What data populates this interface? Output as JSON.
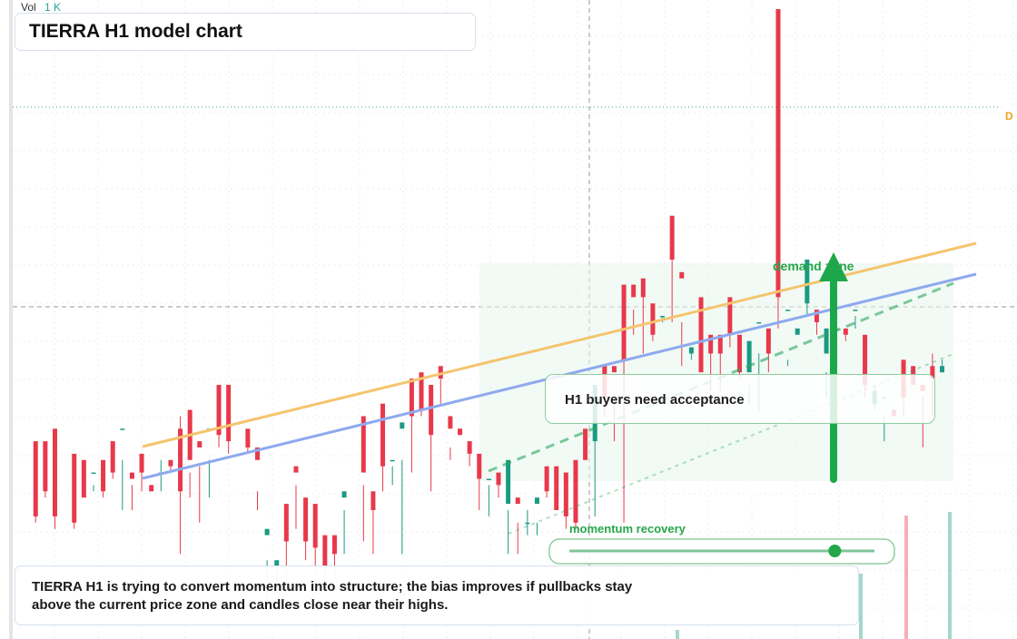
{
  "header": {
    "vol_label": "Vol",
    "vol_value": "1 K",
    "title": "TIERRA H1 model chart"
  },
  "annotations": {
    "zone_label": "demand zone",
    "callout_text": "H1 buyers need acceptance",
    "momentum_label": "momentum recovery",
    "momentum_level": 0.87,
    "right_marker": "D"
  },
  "note": {
    "line1": "TIERRA H1 is trying to convert momentum into structure; the bias improves if pullbacks stay",
    "line2": "above the current price zone and candles close near their highs."
  },
  "colors": {
    "up": "#1a9a82",
    "down": "#e8384b",
    "resistance": "#f5c46e",
    "support": "#8eaaee",
    "accent_green": "#26a64a",
    "vol_value": "#26a69a",
    "marker_orange": "#f0a020"
  },
  "chart_data": {
    "type": "candlestick",
    "y_range": [
      0,
      100
    ],
    "x_range": [
      0,
      100
    ],
    "candles": [
      [
        2,
        30,
        31,
        19,
        18
      ],
      [
        3,
        30,
        31,
        23,
        22
      ],
      [
        4,
        29,
        33,
        19,
        17
      ],
      [
        6,
        19,
        29,
        18,
        17
      ],
      [
        7,
        22,
        28,
        22,
        22
      ],
      [
        8,
        24,
        26,
        26,
        23
      ],
      [
        9,
        26,
        28,
        23,
        22
      ],
      [
        10,
        30,
        31,
        26,
        25
      ],
      [
        11,
        28,
        33,
        33,
        20
      ],
      [
        12,
        24,
        26,
        25,
        20
      ],
      [
        13,
        28,
        29,
        26,
        23
      ],
      [
        14,
        24,
        24,
        23,
        23
      ],
      [
        15,
        28,
        26,
        26,
        23
      ],
      [
        16,
        27,
        28,
        27,
        26
      ],
      [
        17,
        35,
        33,
        23,
        13
      ],
      [
        18,
        26,
        36,
        28,
        22
      ],
      [
        19,
        27,
        31,
        30,
        18
      ],
      [
        20,
        28,
        33,
        33,
        22
      ],
      [
        21,
        39,
        40,
        32,
        30
      ],
      [
        22,
        37,
        40,
        31,
        29
      ],
      [
        24,
        31,
        33,
        30,
        29
      ],
      [
        25,
        23,
        30,
        28,
        20
      ],
      [
        26,
        12,
        16,
        17,
        4
      ],
      [
        27,
        11,
        11,
        12,
        8
      ],
      [
        28,
        19,
        21,
        15,
        8
      ],
      [
        29,
        24,
        27,
        26,
        17
      ],
      [
        30,
        16,
        22,
        15,
        12
      ],
      [
        31,
        15,
        21,
        14,
        10
      ],
      [
        32,
        12,
        16,
        11,
        8
      ],
      [
        33,
        15,
        16,
        13,
        9
      ],
      [
        34,
        20,
        22,
        23,
        13
      ],
      [
        36,
        24,
        35,
        26,
        15
      ],
      [
        37,
        23,
        23,
        20,
        13
      ],
      [
        38,
        30,
        37,
        27,
        23
      ],
      [
        39,
        27,
        28,
        28,
        24
      ],
      [
        40,
        28,
        33,
        34,
        13
      ],
      [
        41,
        35,
        41,
        35,
        26
      ],
      [
        42,
        40,
        42,
        36,
        35
      ],
      [
        43,
        37,
        40,
        32,
        23
      ],
      [
        44,
        41,
        43,
        41,
        37
      ],
      [
        45,
        30,
        35,
        33,
        28
      ],
      [
        46,
        33,
        33,
        32,
        32
      ],
      [
        47,
        29,
        31,
        29,
        27
      ],
      [
        48,
        28,
        29,
        25,
        20
      ],
      [
        49,
        24,
        25,
        25,
        19
      ],
      [
        50,
        24,
        26,
        24,
        22
      ],
      [
        51,
        20,
        21,
        28,
        13
      ],
      [
        52,
        18,
        22,
        21,
        13
      ],
      [
        53,
        20,
        18,
        18,
        16
      ],
      [
        54,
        18,
        21,
        22,
        16
      ],
      [
        55,
        24,
        27,
        23,
        22
      ],
      [
        56,
        26,
        27,
        20,
        20
      ],
      [
        57,
        25,
        26,
        19,
        17
      ],
      [
        58,
        26,
        28,
        18,
        17
      ],
      [
        59,
        28,
        33,
        28,
        28
      ],
      [
        60,
        31,
        31,
        40,
        19
      ],
      [
        61,
        37,
        43,
        38,
        35
      ],
      [
        62,
        38,
        43,
        42,
        31
      ],
      [
        63,
        50,
        56,
        44,
        18
      ],
      [
        64,
        52,
        56,
        54,
        48
      ],
      [
        65,
        55,
        57,
        54,
        45
      ],
      [
        66,
        52,
        53,
        48,
        47
      ],
      [
        67,
        51,
        51,
        51,
        50
      ],
      [
        68,
        62,
        67,
        60,
        50
      ],
      [
        69,
        50,
        58,
        57,
        43
      ],
      [
        70,
        45,
        45,
        46,
        44
      ],
      [
        71,
        44,
        54,
        42,
        43
      ],
      [
        72,
        47,
        48,
        45,
        39
      ],
      [
        73,
        45,
        48,
        45,
        39
      ],
      [
        74,
        48,
        54,
        48,
        46
      ],
      [
        75,
        43,
        48,
        42,
        41
      ],
      [
        76,
        40,
        42,
        47,
        37
      ],
      [
        77,
        45,
        50,
        50,
        36
      ],
      [
        78,
        45,
        49,
        45,
        42
      ],
      [
        79,
        55,
        100,
        54,
        49
      ],
      [
        80,
        44,
        52,
        52,
        43
      ],
      [
        81,
        48,
        48,
        49,
        48
      ],
      [
        82,
        54,
        53,
        60,
        51
      ],
      [
        83,
        50,
        52,
        50,
        48
      ],
      [
        84,
        42,
        45,
        49,
        38
      ],
      [
        85,
        51,
        49,
        49,
        50
      ],
      [
        86,
        48,
        49,
        48,
        47
      ],
      [
        87,
        51,
        52,
        52,
        49
      ],
      [
        88,
        46,
        48,
        40,
        38
      ],
      [
        89,
        40,
        37,
        39,
        36
      ],
      [
        90,
        35,
        38,
        38,
        31
      ],
      [
        91,
        36,
        36,
        35,
        35
      ],
      [
        92,
        44,
        44,
        38,
        35
      ],
      [
        93,
        41,
        43,
        40,
        40
      ],
      [
        94,
        38,
        40,
        39,
        30
      ],
      [
        95,
        45,
        43,
        41,
        35
      ],
      [
        96,
        44,
        42,
        43,
        43
      ]
    ]
  }
}
